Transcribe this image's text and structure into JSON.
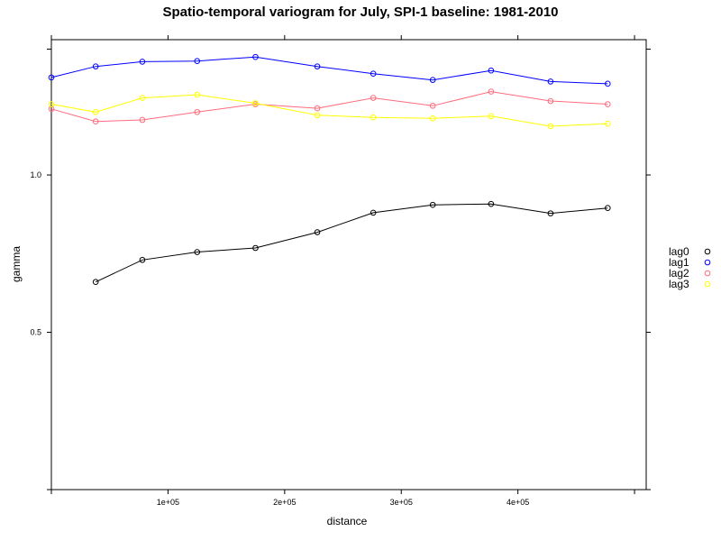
{
  "chart_data": {
    "type": "line",
    "title": "Spatio-temporal variogram for July, SPI-1 baseline: 1981-2010",
    "xlabel": "distance",
    "ylabel": "gamma",
    "xlim": [
      0,
      510000
    ],
    "ylim": [
      0,
      1.43
    ],
    "x_ticks": [
      {
        "value": 100000,
        "label": "1e+05"
      },
      {
        "value": 200000,
        "label": "2e+05"
      },
      {
        "value": 300000,
        "label": "3e+05"
      },
      {
        "value": 400000,
        "label": "4e+05"
      }
    ],
    "y_ticks": [
      {
        "value": 0.5,
        "label": "0.5"
      },
      {
        "value": 1.0,
        "label": "1.0"
      }
    ],
    "grid": false,
    "legend_position": "right",
    "series": [
      {
        "name": "lag0",
        "color": "#000000",
        "x": [
          38000,
          78000,
          125000,
          175000,
          228000,
          276000,
          327000,
          377000,
          428000,
          477000
        ],
        "y": [
          0.66,
          0.73,
          0.755,
          0.768,
          0.818,
          0.88,
          0.905,
          0.908,
          0.878,
          0.895
        ]
      },
      {
        "name": "lag1",
        "color": "#0000ff",
        "x": [
          0,
          38000,
          78000,
          125000,
          175000,
          228000,
          276000,
          327000,
          377000,
          428000,
          477000
        ],
        "y": [
          1.31,
          1.345,
          1.36,
          1.362,
          1.375,
          1.345,
          1.322,
          1.302,
          1.332,
          1.297,
          1.29
        ]
      },
      {
        "name": "lag2",
        "color": "#ff6b7d",
        "x": [
          0,
          38000,
          78000,
          125000,
          175000,
          228000,
          276000,
          327000,
          377000,
          428000,
          477000
        ],
        "y": [
          1.21,
          1.17,
          1.175,
          1.2,
          1.225,
          1.212,
          1.245,
          1.22,
          1.265,
          1.235,
          1.225
        ]
      },
      {
        "name": "lag3",
        "color": "#ffff00",
        "x": [
          0,
          38000,
          78000,
          125000,
          175000,
          228000,
          276000,
          327000,
          377000,
          428000,
          477000
        ],
        "y": [
          1.225,
          1.2,
          1.245,
          1.255,
          1.228,
          1.19,
          1.183,
          1.18,
          1.187,
          1.155,
          1.163
        ]
      }
    ]
  }
}
